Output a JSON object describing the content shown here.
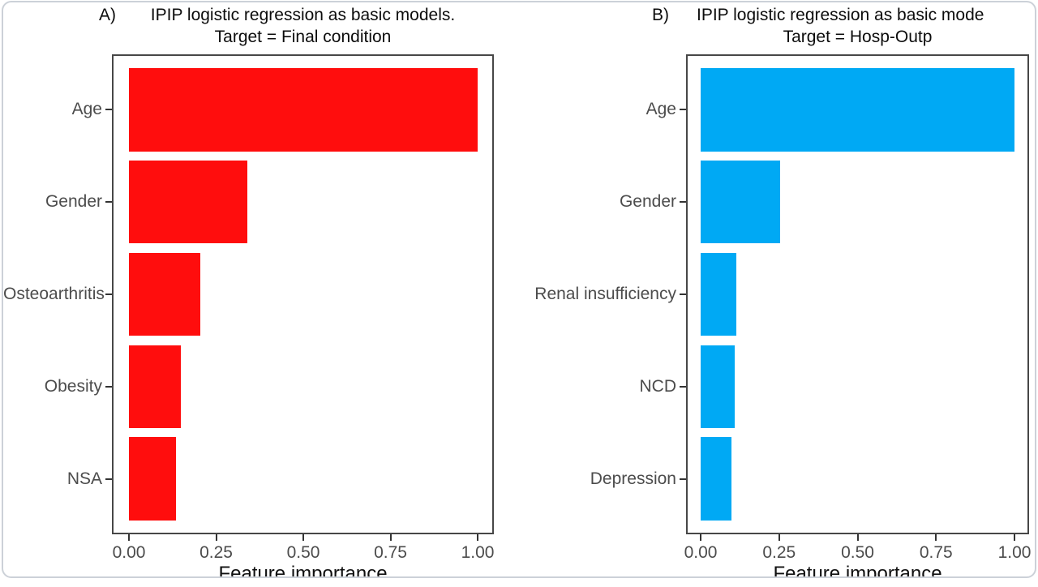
{
  "figure": {
    "description_visible_text_only": true,
    "shared_x_axis_label": "Feature importance"
  },
  "colors": {
    "bar_red": "#FF0D0D",
    "bar_blue": "#00A9F4",
    "axis_text_grey": "#4C4C4C",
    "panel_border": "#474747",
    "title_black": "#0C0C0C",
    "card_border": "#CCD1D8"
  },
  "chart_data": [
    {
      "panel_tag": "A)",
      "type": "bar",
      "orientation": "horizontal",
      "title_line1": "IPIP logistic regression as basic models.",
      "title_line2": "Target = Final condition",
      "categories": [
        "Age",
        "Gender",
        "Osteoarthritis",
        "Obesity",
        "NSA"
      ],
      "values": [
        1.0,
        0.34,
        0.205,
        0.148,
        0.135
      ],
      "bar_color": "#FF0D0D",
      "xlabel": "Feature importance",
      "x_ticks": [
        "0.00",
        "0.25",
        "0.50",
        "0.75",
        "1.00"
      ],
      "x_tick_values": [
        0,
        0.25,
        0.5,
        0.75,
        1.0
      ],
      "xlim": [
        0,
        1.05
      ],
      "grid": false,
      "legend": "none"
    },
    {
      "panel_tag": "B)",
      "type": "bar",
      "orientation": "horizontal",
      "title_line1": "IPIP logistic regression as basic mode",
      "title_line2": "Target = Hosp-Outp",
      "categories": [
        "Age",
        "Gender",
        "Renal insufficiency",
        "NCD",
        "Depression"
      ],
      "values": [
        1.0,
        0.253,
        0.114,
        0.109,
        0.098
      ],
      "bar_color": "#00A9F4",
      "xlabel": "Feature importance",
      "x_ticks": [
        "0.00",
        "0.25",
        "0.50",
        "0.75",
        "1.00"
      ],
      "x_tick_values": [
        0,
        0.25,
        0.5,
        0.75,
        1.0
      ],
      "xlim": [
        0,
        1.05
      ],
      "grid": false,
      "legend": "none"
    }
  ]
}
